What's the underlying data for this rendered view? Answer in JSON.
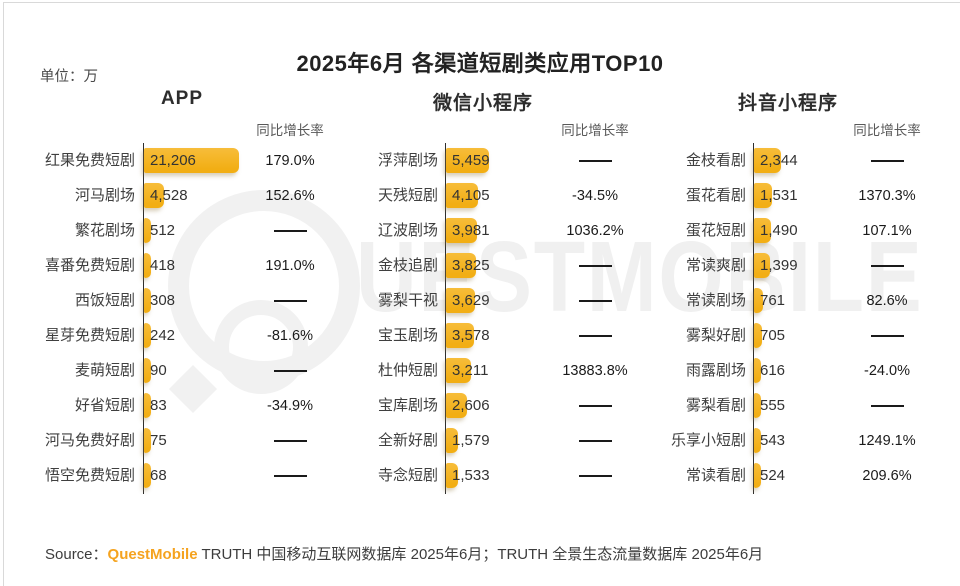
{
  "meta": {
    "title": "2025年6月 各渠道短剧类应用TOP10",
    "unit_label": "单位：万",
    "growth_header": "同比增长率",
    "watermark": "QUESTMOBILE",
    "watermark_tail": "UESTMOBILE",
    "source_prefix": "Source：",
    "source_brand": "QuestMobile",
    "source_rest": " TRUTH 中国移动互联网数据库 2025年6月；TRUTH 全景生态流量数据库 2025年6月"
  },
  "colors": {
    "bar_gold": "#F3B11C",
    "brand_orange": "#F5A31F",
    "axis_dark": "#2E2E2E",
    "watermark_gray": "#F0F0F0"
  },
  "chart_data": [
    {
      "type": "bar",
      "title": "APP",
      "ylabel": "单位：万",
      "legend_position": "none",
      "grid": false,
      "categories": [
        "红果免费短剧",
        "河马剧场",
        "繁花剧场",
        "喜番免费短剧",
        "西饭短剧",
        "星芽免费短剧",
        "麦萌短剧",
        "好省短剧",
        "河马免费好剧",
        "悟空免费短剧"
      ],
      "values": [
        21206,
        4528,
        512,
        418,
        308,
        242,
        90,
        83,
        75,
        68
      ],
      "value_labels": [
        "21,206",
        "4,528",
        "512",
        "418",
        "308",
        "242",
        "90",
        "83",
        "75",
        "68"
      ],
      "growth": [
        "179.0%",
        "152.6%",
        "",
        "191.0%",
        "",
        "-81.6%",
        "",
        "-34.9%",
        "",
        ""
      ]
    },
    {
      "type": "bar",
      "title": "微信小程序",
      "ylabel": "单位：万",
      "legend_position": "none",
      "grid": false,
      "categories": [
        "浮萍剧场",
        "天残短剧",
        "辽波剧场",
        "金枝追剧",
        "雾梨干视",
        "宝玉剧场",
        "杜仲短剧",
        "宝库剧场",
        "全新好剧",
        "寺念短剧"
      ],
      "values": [
        5459,
        4105,
        3981,
        3825,
        3629,
        3578,
        3211,
        2606,
        1579,
        1533
      ],
      "value_labels": [
        "5,459",
        "4,105",
        "3,981",
        "3,825",
        "3,629",
        "3,578",
        "3,211",
        "2,606",
        "1,579",
        "1,533"
      ],
      "growth": [
        "",
        "-34.5%",
        "1036.2%",
        "",
        "",
        "",
        "13883.8%",
        "",
        "",
        ""
      ]
    },
    {
      "type": "bar",
      "title": "抖音小程序",
      "ylabel": "单位：万",
      "legend_position": "none",
      "grid": false,
      "categories": [
        "金枝看剧",
        "蛋花看剧",
        "蛋花短剧",
        "常读爽剧",
        "常读剧场",
        "雾梨好剧",
        "雨露剧场",
        "雾梨看剧",
        "乐享小短剧",
        "常读看剧"
      ],
      "values": [
        2344,
        1531,
        1490,
        1399,
        761,
        705,
        616,
        555,
        543,
        524
      ],
      "value_labels": [
        "2,344",
        "1,531",
        "1,490",
        "1,399",
        "761",
        "705",
        "616",
        "555",
        "543",
        "524"
      ],
      "growth": [
        "",
        "1370.3%",
        "107.1%",
        "",
        "82.6%",
        "",
        "-24.0%",
        "",
        "1249.1%",
        "209.6%"
      ]
    }
  ]
}
